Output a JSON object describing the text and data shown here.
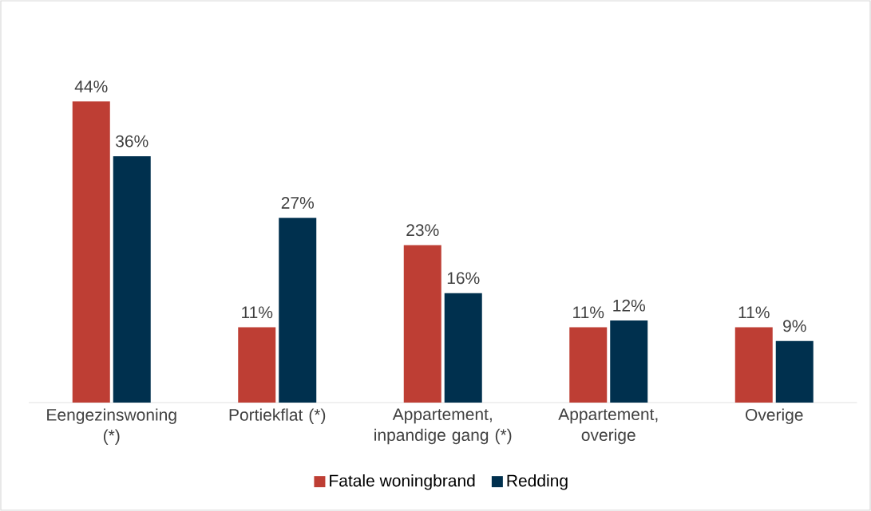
{
  "chart_data": {
    "type": "bar",
    "categories": [
      "Eengezinswoning (*)",
      "Portiekflat (*)",
      "Appartement, inpandige gang (*)",
      "Appartement, overige",
      "Overige"
    ],
    "series": [
      {
        "name": "Fatale woningbrand",
        "color": "#be3e34",
        "values": [
          44,
          11,
          23,
          11,
          11
        ],
        "value_labels": [
          "44%",
          "11%",
          "23%",
          "11%",
          "11%"
        ]
      },
      {
        "name": "Redding",
        "color": "#00304e",
        "values": [
          36,
          27,
          16,
          12,
          9
        ],
        "value_labels": [
          "36%",
          "27%",
          "16%",
          "12%",
          "9%"
        ]
      }
    ],
    "legend": "bottom"
  }
}
